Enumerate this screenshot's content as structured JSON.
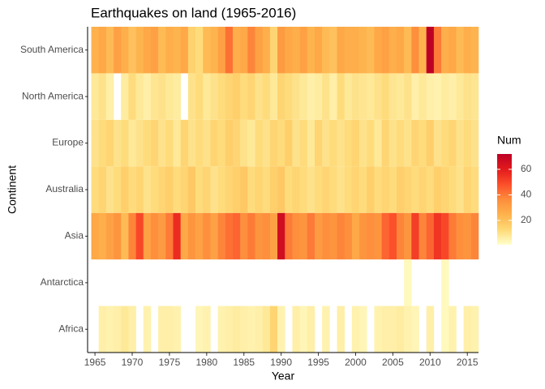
{
  "chart_data": {
    "type": "heatmap",
    "title": "Earthquakes on land (1965-2016)",
    "x_label": "Year",
    "y_label": "Continent",
    "legend_title": "Num",
    "x": [
      1965,
      1966,
      1967,
      1968,
      1969,
      1970,
      1971,
      1972,
      1973,
      1974,
      1975,
      1976,
      1977,
      1978,
      1979,
      1980,
      1981,
      1982,
      1983,
      1984,
      1985,
      1986,
      1987,
      1988,
      1989,
      1990,
      1991,
      1992,
      1993,
      1994,
      1995,
      1996,
      1997,
      1998,
      1999,
      2000,
      2001,
      2002,
      2003,
      2004,
      2005,
      2006,
      2007,
      2008,
      2009,
      2010,
      2011,
      2012,
      2013,
      2014,
      2015,
      2016
    ],
    "xlim": [
      1964.5,
      2016.5
    ],
    "xticks": [
      1965,
      1970,
      1975,
      1980,
      1985,
      1990,
      1995,
      2000,
      2005,
      2010,
      2015
    ],
    "colorscale": [
      "#ffffcc",
      "#fed976",
      "#feb24c",
      "#fd8d3c",
      "#fc4e2a",
      "#e31a1c",
      "#bd0026"
    ],
    "colorlim": [
      1,
      72
    ],
    "colorticks": [
      20,
      40,
      60
    ],
    "series": [
      {
        "name": "Africa",
        "values": [
          null,
          6,
          5,
          6,
          8,
          6,
          null,
          5,
          null,
          6,
          6,
          5,
          null,
          null,
          4,
          5,
          null,
          5,
          6,
          7,
          6,
          5,
          6,
          8,
          14,
          5,
          null,
          6,
          4,
          6,
          null,
          5,
          null,
          6,
          null,
          5,
          4,
          null,
          5,
          6,
          6,
          7,
          5,
          4,
          null,
          6,
          null,
          3,
          5,
          null,
          6,
          5
        ]
      },
      {
        "name": "Antarctica",
        "values": [
          null,
          null,
          null,
          null,
          null,
          null,
          null,
          null,
          null,
          null,
          null,
          null,
          null,
          null,
          null,
          null,
          null,
          null,
          null,
          null,
          null,
          null,
          null,
          null,
          null,
          null,
          null,
          null,
          null,
          null,
          null,
          null,
          null,
          null,
          null,
          null,
          null,
          null,
          null,
          null,
          null,
          null,
          3,
          null,
          null,
          null,
          null,
          3,
          null,
          null,
          null,
          null
        ]
      },
      {
        "name": "Asia",
        "values": [
          28,
          26,
          30,
          34,
          22,
          38,
          50,
          30,
          36,
          32,
          40,
          56,
          28,
          34,
          30,
          36,
          30,
          38,
          42,
          44,
          36,
          40,
          34,
          36,
          30,
          66,
          40,
          36,
          34,
          40,
          32,
          36,
          34,
          38,
          36,
          28,
          34,
          36,
          34,
          44,
          48,
          38,
          34,
          52,
          38,
          44,
          54,
          50,
          40,
          36,
          34,
          38
        ]
      },
      {
        "name": "Australia",
        "values": [
          12,
          14,
          10,
          12,
          16,
          12,
          14,
          10,
          12,
          14,
          16,
          12,
          14,
          18,
          12,
          14,
          10,
          12,
          14,
          16,
          18,
          12,
          14,
          12,
          16,
          18,
          12,
          14,
          12,
          10,
          12,
          14,
          12,
          10,
          12,
          14,
          12,
          16,
          12,
          14,
          12,
          16,
          14,
          12,
          14,
          12,
          16,
          14,
          12,
          10,
          14,
          12
        ]
      },
      {
        "name": "Europe",
        "values": [
          10,
          12,
          14,
          10,
          12,
          8,
          10,
          12,
          14,
          10,
          12,
          8,
          14,
          10,
          12,
          10,
          14,
          12,
          16,
          14,
          10,
          8,
          12,
          10,
          14,
          12,
          16,
          10,
          12,
          8,
          14,
          10,
          12,
          10,
          12,
          14,
          10,
          12,
          8,
          14,
          10,
          12,
          10,
          14,
          12,
          16,
          10,
          12,
          14,
          10,
          12,
          10
        ]
      },
      {
        "name": "North America",
        "values": [
          8,
          10,
          6,
          null,
          7,
          12,
          8,
          6,
          9,
          10,
          8,
          7,
          null,
          10,
          12,
          8,
          10,
          12,
          14,
          16,
          12,
          14,
          10,
          12,
          8,
          14,
          12,
          10,
          8,
          6,
          7,
          10,
          6,
          12,
          8,
          10,
          9,
          8,
          10,
          12,
          9,
          8,
          10,
          6,
          8,
          6,
          5,
          7,
          6,
          8,
          10,
          9
        ]
      },
      {
        "name": "South America",
        "values": [
          25,
          28,
          22,
          30,
          26,
          20,
          24,
          28,
          30,
          22,
          26,
          24,
          28,
          15,
          12,
          22,
          24,
          30,
          42,
          26,
          28,
          38,
          30,
          26,
          14,
          32,
          28,
          26,
          30,
          24,
          28,
          22,
          20,
          28,
          26,
          26,
          24,
          22,
          28,
          30,
          26,
          28,
          22,
          36,
          24,
          72,
          40,
          26,
          28,
          22,
          26,
          24
        ]
      }
    ]
  }
}
